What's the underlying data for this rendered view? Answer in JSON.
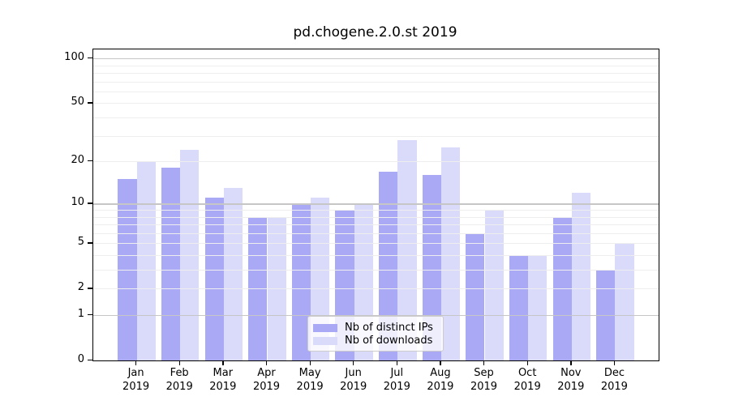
{
  "title": "pd.chogene.2.0.st 2019",
  "chart_data": {
    "type": "bar",
    "title": "pd.chogene.2.0.st 2019",
    "categories": [
      "Jan",
      "Feb",
      "Mar",
      "Apr",
      "May",
      "Jun",
      "Jul",
      "Aug",
      "Sep",
      "Oct",
      "Nov",
      "Dec"
    ],
    "category_year": "2019",
    "series": [
      {
        "name": "Nb of distinct IPs",
        "color": "#a9a9f6",
        "values": [
          15,
          18,
          11,
          8,
          10,
          9,
          17,
          16,
          6,
          4,
          8,
          3
        ]
      },
      {
        "name": "Nb of downloads",
        "color": "#dadafa",
        "values": [
          20,
          24,
          13,
          8,
          11,
          10,
          28,
          25,
          9,
          4,
          12,
          5
        ]
      }
    ],
    "xlabel": "",
    "ylabel": "",
    "yscale": "log1p",
    "ylim": [
      0,
      115
    ],
    "y_tick_labels": [
      0,
      1,
      2,
      5,
      10,
      20,
      50,
      100
    ],
    "y_decade_gridlines": [
      1,
      10,
      100
    ],
    "y_minor_gridlines": [
      2,
      3,
      4,
      5,
      6,
      7,
      8,
      9,
      20,
      30,
      40,
      50,
      60,
      70,
      80,
      90
    ],
    "grid": "horizontal",
    "legend_position": "lower center"
  },
  "colors": {
    "bar_distinct_ips": "#a9a9f6",
    "bar_downloads": "#dadafa",
    "grid_decade": "#c6c6c6",
    "grid_minor": "#eeeeee",
    "axis": "#000000",
    "legend_border": "#cccccc",
    "background": "#ffffff"
  }
}
